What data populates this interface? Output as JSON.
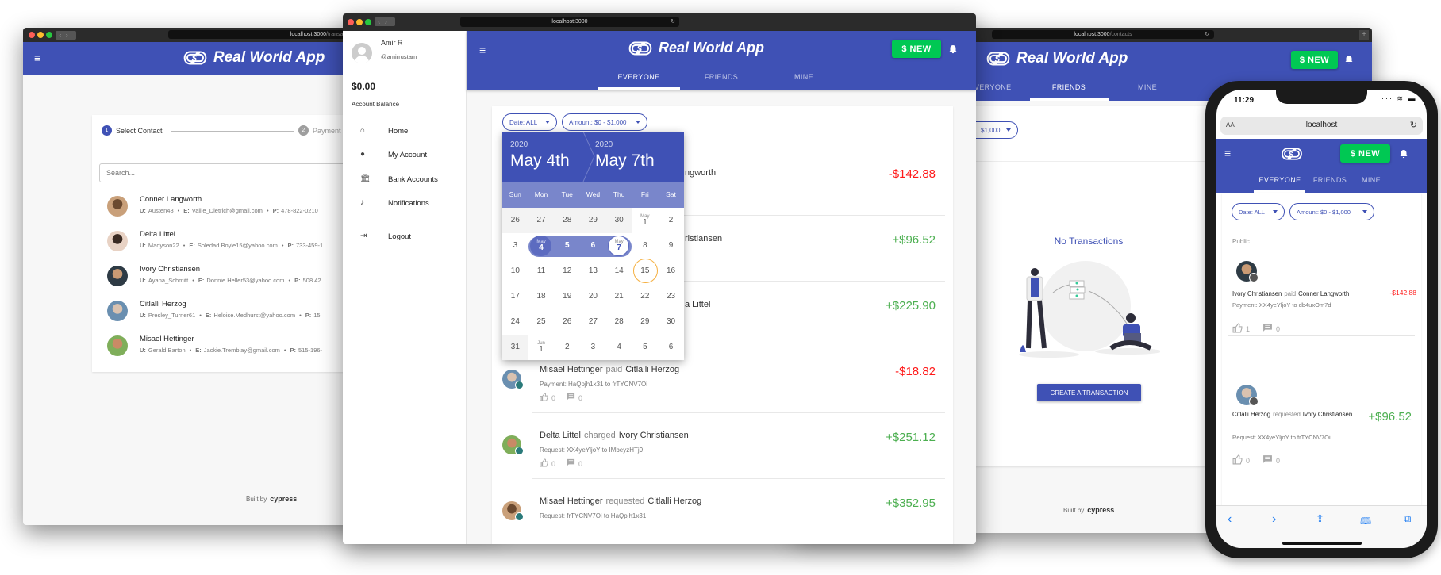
{
  "colors": {
    "primary": "#3f51b5",
    "new_button": "#00c853",
    "negative": "#ff1a1a",
    "positive": "#4caf50",
    "today_ring": "#f5b041"
  },
  "app": {
    "title": "Real World App",
    "new_label": "$ NEW",
    "tabs": [
      "EVERYONE",
      "FRIENDS",
      "MINE"
    ],
    "footer_prefix": "Built by",
    "footer_brand": "cypress"
  },
  "left_window": {
    "url_host": "localhost:3000",
    "url_path": "/transaction/new",
    "stepper": [
      {
        "num": "1",
        "label": "Select Contact",
        "active": true
      },
      {
        "num": "2",
        "label": "Payment",
        "active": false
      }
    ],
    "search_placeholder": "Search...",
    "contacts": [
      {
        "name": "Conner Langworth",
        "u": "Austen48",
        "e": "Vallie_Dietrich@gmail.com",
        "p": "478-822-0210"
      },
      {
        "name": "Delta Littel",
        "u": "Madyson22",
        "e": "Soledad.Boyle15@yahoo.com",
        "p": "733-459-1"
      },
      {
        "name": "Ivory Christiansen",
        "u": "Ayana_Schmitt",
        "e": "Donnie.Heller53@yahoo.com",
        "p": "508.42"
      },
      {
        "name": "Citlalli Herzog",
        "u": "Presley_Turner61",
        "e": "Heloise.Medhurst@yahoo.com",
        "p": "15"
      },
      {
        "name": "Misael Hettinger",
        "u": "Gerald.Barton",
        "e": "Jackie.Tremblay@gmail.com",
        "p": "515-196-"
      }
    ],
    "labels": {
      "u": "U:",
      "e": "E:",
      "p": "P:"
    }
  },
  "middle_window": {
    "url": "localhost:3000",
    "user": {
      "name": "Amir R",
      "handle": "@amirrustam",
      "balance": "$0.00",
      "balance_label": "Account Balance"
    },
    "nav": [
      {
        "label": "Home",
        "icon": "home-icon"
      },
      {
        "label": "My Account",
        "icon": "person-icon"
      },
      {
        "label": "Bank Accounts",
        "icon": "bank-icon"
      },
      {
        "label": "Notifications",
        "icon": "bell-icon"
      },
      {
        "label": "Logout",
        "icon": "logout-icon"
      }
    ],
    "filters": {
      "date": "Date: ALL",
      "amount": "Amount: $0 - $1,000"
    },
    "date_picker": {
      "start_year": "2020",
      "start": "May 4th",
      "end_year": "2020",
      "end": "May 7th",
      "weekdays": [
        "Sun",
        "Mon",
        "Tue",
        "Wed",
        "Thu",
        "Fri",
        "Sat"
      ],
      "weeks": [
        [
          "26",
          "27",
          "28",
          "29",
          "30",
          "1",
          "2"
        ],
        [
          "3",
          "4",
          "5",
          "6",
          "7",
          "8",
          "9"
        ],
        [
          "10",
          "11",
          "12",
          "13",
          "14",
          "15",
          "16"
        ],
        [
          "17",
          "18",
          "19",
          "20",
          "21",
          "22",
          "23"
        ],
        [
          "24",
          "25",
          "26",
          "27",
          "28",
          "29",
          "30"
        ],
        [
          "31",
          "1",
          "2",
          "3",
          "4",
          "5",
          "6"
        ]
      ],
      "month_labels": {
        "0-5": "May",
        "1-1": "May",
        "1-4": "May",
        "5-1": "Jun"
      },
      "range": [
        "1-1",
        "1-2",
        "1-3",
        "1-4"
      ],
      "today": "2-5"
    },
    "transactions": [
      {
        "partial": "ngworth",
        "amount": "-$142.88",
        "neg": true
      },
      {
        "partial": "ristiansen",
        "amount": "+$96.52",
        "neg": false
      },
      {
        "partial": "a Littel",
        "amount": "+$225.90",
        "neg": false
      },
      {
        "sender": "Misael Hettinger",
        "action": "paid",
        "receiver": "Citlalli Herzog",
        "amount": "-$18.82",
        "neg": true,
        "detail": "Payment: HaQpjh1x31 to frTYCNV7Oi",
        "likes": "0",
        "comments": "0"
      },
      {
        "sender": "Delta Littel",
        "action": "charged",
        "receiver": "Ivory Christiansen",
        "amount": "+$251.12",
        "neg": false,
        "detail": "Request: XX4yeYljoY to IMbeyzHTj9",
        "likes": "0",
        "comments": "0"
      },
      {
        "sender": "Misael Hettinger",
        "action": "requested",
        "receiver": "Citlalli Herzog",
        "amount": "+$352.95",
        "neg": false,
        "detail": "Request: frTYCNV7Oi to HaQpjh1x31"
      }
    ]
  },
  "right_window": {
    "url_host": "localhost:3000",
    "url_path": "/contacts",
    "amount_chip": "$1,000",
    "empty_title": "No Transactions",
    "create_button": "CREATE A TRANSACTION"
  },
  "phone": {
    "time": "11:29",
    "url": "localhost",
    "aa": "AA",
    "section": "Public",
    "items": [
      {
        "sender": "Ivory Christiansen",
        "action": "paid",
        "receiver": "Conner Langworth",
        "amount": "-$142.88",
        "neg": true,
        "detail": "Payment: XX4yeYljoY to db4uxOm7d",
        "likes": "1",
        "comments": "0"
      },
      {
        "sender": "Citlalli Herzog",
        "action": "requested",
        "receiver": "Ivory Christiansen",
        "amount": "+$96.52",
        "neg": false,
        "detail": "Request: XX4yeYljoY to frTYCNV7Oi",
        "likes": "0",
        "comments": "0"
      }
    ]
  }
}
